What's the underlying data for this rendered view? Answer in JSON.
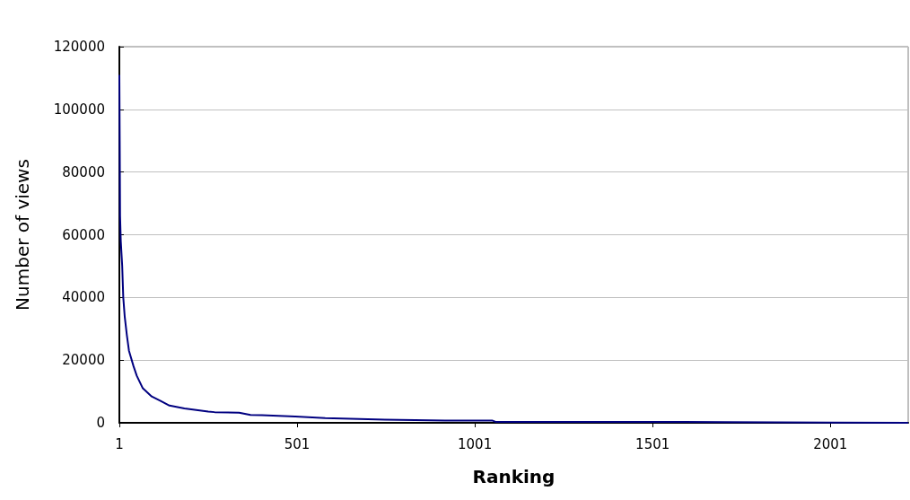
{
  "chart_data": {
    "type": "line",
    "xlabel": "Ranking",
    "ylabel": "Number of views",
    "x": [
      1,
      2,
      3,
      5,
      9,
      12,
      16,
      22,
      28,
      41,
      50,
      67,
      92,
      117,
      142,
      184,
      251,
      269,
      338,
      370,
      402,
      496,
      580,
      748,
      917,
      1051,
      1059,
      1253,
      1500,
      1703,
      1704,
      2000,
      2220
    ],
    "series": [
      {
        "color": "#000080",
        "values": [
          111000,
          90000,
          66000,
          58000,
          50000,
          40000,
          34000,
          28000,
          23000,
          18000,
          15000,
          11000,
          8400,
          7000,
          5500,
          4600,
          3600,
          3400,
          3200,
          2500,
          2400,
          2000,
          1500,
          1000,
          700,
          700,
          300,
          300,
          300,
          200,
          100,
          100,
          0
        ]
      }
    ],
    "xlim": [
      1,
      2220
    ],
    "xticks": [
      1,
      501,
      1001,
      1501,
      2001
    ],
    "ylim": [
      0,
      120000
    ],
    "yticks": [
      0,
      20000,
      40000,
      60000,
      80000,
      100000,
      120000
    ],
    "grid": "y",
    "marker": "none",
    "line_style": "solid"
  }
}
